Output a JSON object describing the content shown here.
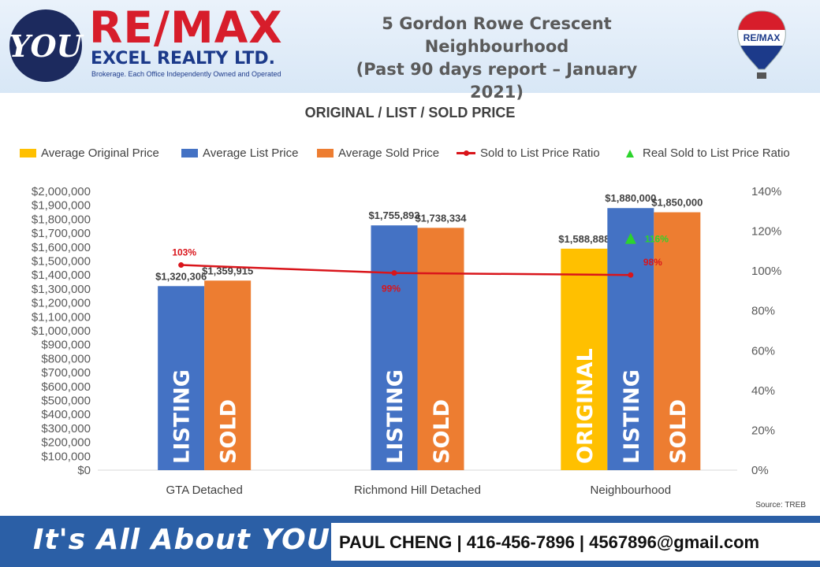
{
  "header": {
    "logo_text": "YOU",
    "brand_name": "RE/MAX",
    "brand_sub": "EXCEL REALTY LTD.",
    "brand_tagline": "Brokerage. Each Office Independently Owned and Operated",
    "title_lines": [
      "5 Gordon Rowe Crescent",
      "Neighbourhood",
      "(Past 90 days report – January 2021)"
    ],
    "balloon_text": "RE/MAX"
  },
  "chart_data": {
    "type": "bar",
    "title": "ORIGINAL / LIST / SOLD PRICE",
    "categories": [
      "GTA Detached",
      "Richmond Hill Detached",
      "Neighbourhood"
    ],
    "series": [
      {
        "name": "Average Original Price",
        "color": "#ffc000",
        "values": [
          null,
          null,
          1588888
        ],
        "labels": [
          null,
          null,
          "$1,588,888"
        ],
        "bar_text": "ORIGINAL"
      },
      {
        "name": "Average List Price",
        "color": "#4472c4",
        "values": [
          1320306,
          1755893,
          1880000
        ],
        "labels": [
          "$1,320,306",
          "$1,755,893",
          "$1,880,000"
        ],
        "bar_text": "LISTING"
      },
      {
        "name": "Average Sold Price",
        "color": "#ed7d31",
        "values": [
          1359915,
          1738334,
          1850000
        ],
        "labels": [
          "$1,359,915",
          "$1,738,334",
          "$1,850,000"
        ],
        "bar_text": "SOLD"
      }
    ],
    "ratio_series": {
      "name": "Sold to List Price Ratio",
      "color": "#d9151b",
      "values": [
        103,
        99,
        98
      ],
      "labels": [
        "103%",
        "99%",
        "98%"
      ]
    },
    "real_ratio_series": {
      "name": "Real Sold to List Price Ratio",
      "color": "#2cd42c",
      "values": [
        null,
        null,
        116
      ],
      "labels": [
        null,
        null,
        "116%"
      ]
    },
    "y_left": {
      "min": 0,
      "max": 2000000,
      "step": 100000,
      "tick_labels": [
        "$0",
        "$100,000",
        "$200,000",
        "$300,000",
        "$400,000",
        "$500,000",
        "$600,000",
        "$700,000",
        "$800,000",
        "$900,000",
        "$1,000,000",
        "$1,100,000",
        "$1,200,000",
        "$1,300,000",
        "$1,400,000",
        "$1,500,000",
        "$1,600,000",
        "$1,700,000",
        "$1,800,000",
        "$1,900,000",
        "$2,000,000"
      ]
    },
    "y_right": {
      "min": 0,
      "max": 140,
      "step": 20,
      "tick_labels": [
        "0%",
        "20%",
        "40%",
        "60%",
        "80%",
        "100%",
        "120%",
        "140%"
      ]
    },
    "grid": false,
    "legend_position": "top"
  },
  "source": "Source: TREB",
  "footer": {
    "slogan": "It's All About YOU",
    "contact": "PAUL CHENG | 416-456-7896 | 4567896@gmail.com"
  }
}
